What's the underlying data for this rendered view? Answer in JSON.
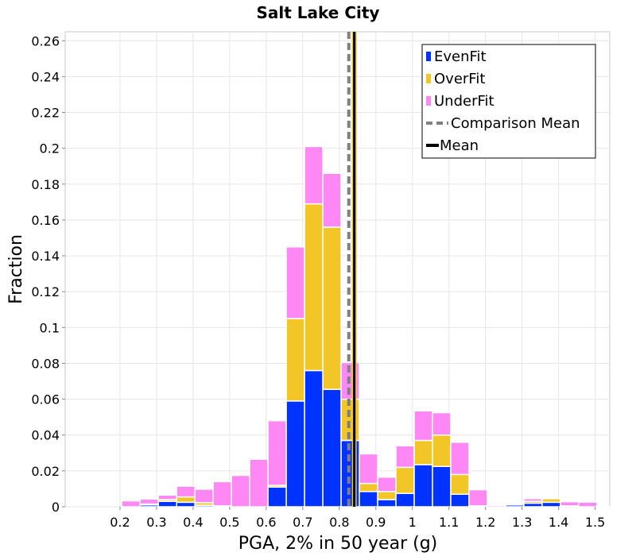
{
  "chart_data": {
    "type": "bar",
    "stacked": true,
    "title": "Salt Lake City",
    "xlabel": "PGA, 2% in 50 year (g)",
    "ylabel": "Fraction",
    "xlim": [
      0.05,
      1.54
    ],
    "ylim": [
      0,
      0.265
    ],
    "xticks": [
      "0.2",
      "0.3",
      "0.4",
      "0.5",
      "0.6",
      "0.7",
      "0.8",
      "0.9",
      "1",
      "1.1",
      "1.2",
      "1.3",
      "1.4",
      "1.5"
    ],
    "yticks": [
      "0",
      "0.02",
      "0.04",
      "0.06",
      "0.08",
      "0.1",
      "0.12",
      "0.14",
      "0.16",
      "0.18",
      "0.2",
      "0.22",
      "0.24",
      "0.26"
    ],
    "bin_width": 0.05,
    "bin_centers": [
      0.18,
      0.23,
      0.28,
      0.33,
      0.38,
      0.43,
      0.48,
      0.53,
      0.58,
      0.63,
      0.68,
      0.73,
      0.78,
      0.83,
      0.88,
      0.93,
      0.98,
      1.03,
      1.08,
      1.13,
      1.18,
      1.23,
      1.28,
      1.33,
      1.38,
      1.43,
      1.48,
      1.53
    ],
    "series": [
      {
        "name": "EvenFit",
        "color": "#0033ff",
        "values": [
          0,
          0,
          0.001,
          0.003,
          0.0025,
          0.0008,
          0.0003,
          0,
          0,
          0.011,
          0.059,
          0.076,
          0.0655,
          0.037,
          0.0085,
          0.004,
          0.0075,
          0.0235,
          0.0225,
          0.007,
          0,
          0,
          0.001,
          0.002,
          0.0025,
          0,
          0,
          0
        ]
      },
      {
        "name": "OverFit",
        "color": "#f2c626",
        "values": [
          0,
          0,
          0.0005,
          0.001,
          0.003,
          0.0015,
          0.0002,
          0,
          0,
          0.001,
          0.046,
          0.093,
          0.0905,
          0.023,
          0.0045,
          0.0045,
          0.0145,
          0.0135,
          0.0175,
          0.011,
          0.0005,
          0,
          0.0005,
          0.001,
          0.002,
          0.0005,
          0,
          0
        ]
      },
      {
        "name": "UnderFit",
        "color": "#ff88f5",
        "values": [
          0,
          0.0033,
          0.0028,
          0.0025,
          0.006,
          0.0075,
          0.0135,
          0.0175,
          0.0265,
          0.036,
          0.04,
          0.032,
          0.03,
          0.0205,
          0.0165,
          0.008,
          0.012,
          0.0165,
          0.0125,
          0.018,
          0.009,
          0.0008,
          0.0005,
          0.0015,
          0,
          0.0023,
          0.0026,
          0.0003
        ]
      }
    ],
    "lines": [
      {
        "name": "Comparison Mean",
        "x": 0.826,
        "color": "#808080",
        "style": "dashed"
      },
      {
        "name": "Mean",
        "x": 0.841,
        "color": "#000000",
        "style": "solid"
      }
    ],
    "legend_entries": [
      "EvenFit",
      "OverFit",
      "UnderFit",
      "Comparison Mean",
      "Mean"
    ],
    "legend_position": "top-right",
    "grid": true
  }
}
